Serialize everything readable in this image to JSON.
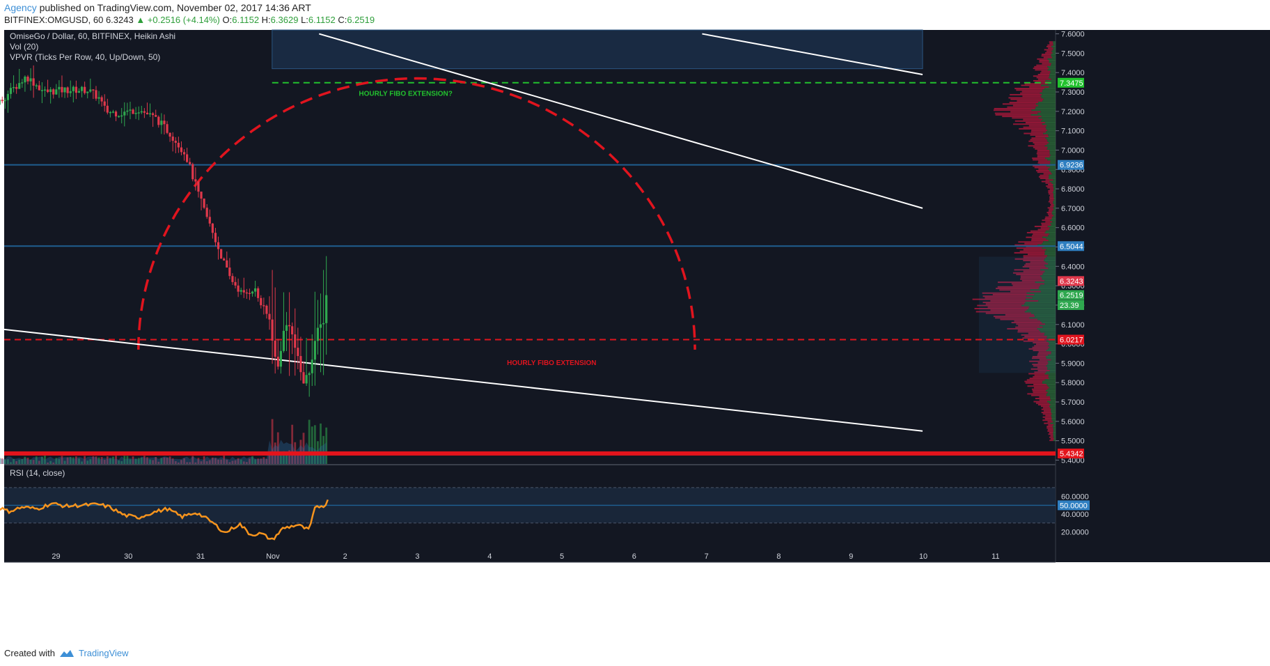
{
  "header": {
    "author": "Agency",
    "published_text": "published on TradingView.com, November 02, 2017 14:36 ART",
    "symbol": "BITFINEX:OMGUSD, 60",
    "last": "6.3243",
    "change": "+0.2516 (+4.14%)",
    "o_label": "O:",
    "o_value": "6.1152",
    "h_label": "H:",
    "h_value": "6.3629",
    "l_label": "L:",
    "l_value": "6.1152",
    "c_label": "C:",
    "c_value": "6.2519"
  },
  "footer": {
    "created_with": "Created with",
    "brand": "TradingView"
  },
  "colors": {
    "background": "#131722",
    "up": "#2fa84f",
    "down": "#e0384b",
    "fibo_green": "#22c22e",
    "fibo_red": "#e0141e",
    "hline_blue": "#1f5e8f",
    "rsi_line": "#f7941d",
    "volume_area": "#2b6ea3",
    "profile_red": "#a8173a",
    "profile_green": "#2d6e3a",
    "support_red": "#e3141c"
  },
  "chart_data": [
    {
      "type": "candlestick",
      "legend": [
        "OmiseGo / Dollar, 60, BITFINEX, Heikin Ashi",
        "Vol (20)",
        "VPVR (Ticks Per Row, 40, Up/Down, 50)"
      ],
      "x_ticks": [
        "29",
        "30",
        "31",
        "Nov",
        "2",
        "3",
        "4",
        "5",
        "6",
        "7",
        "8",
        "9",
        "10",
        "11"
      ],
      "ylim": [
        5.38,
        7.62
      ],
      "y_ticks": [
        "7.6000",
        "7.5000",
        "7.4000",
        "7.3000",
        "7.2000",
        "7.1000",
        "7.0000",
        "6.9000",
        "6.8000",
        "6.7000",
        "6.6000",
        "6.5000",
        "6.4000",
        "6.3000",
        "6.2000",
        "6.1000",
        "6.0000",
        "5.9000",
        "5.8000",
        "5.7000",
        "5.6000",
        "5.5000",
        "5.4000"
      ],
      "price_markers": [
        {
          "label": "7.3475",
          "value": 7.3475,
          "color": "#22c22e"
        },
        {
          "label": "6.9236",
          "value": 6.9236,
          "color": "#2f7fc1"
        },
        {
          "label": "6.5044",
          "value": 6.5044,
          "color": "#2f7fc1"
        },
        {
          "label": "6.3243",
          "value": 6.3243,
          "color": "#e0384b"
        },
        {
          "label": "6.2519",
          "value": 6.2519,
          "color": "#2fa84f"
        },
        {
          "label": "23.39",
          "value": 6.2,
          "color": "#2fa84f"
        },
        {
          "label": "6.0217",
          "value": 6.0217,
          "color": "#e0141e"
        },
        {
          "label": "5.4342",
          "value": 5.4342,
          "color": "#e3141c"
        }
      ],
      "annotations": [
        {
          "text": "HOURLY FIBO EXTENSION?",
          "color": "#22c22e"
        },
        {
          "text": "HOURLY FIBO EXTENSION",
          "color": "#e0141e"
        }
      ],
      "horizontal_levels": {
        "fibo_green": 7.3475,
        "blue_1": 6.9236,
        "blue_2": 6.5044,
        "fibo_red": 6.0217,
        "support": 5.4342
      },
      "trendlines": [
        {
          "name": "upper-channel-1",
          "from": [
            3.5,
            7.6
          ],
          "to": [
            11.85,
            6.7
          ]
        },
        {
          "name": "upper-channel-2",
          "from": [
            8.8,
            7.6
          ],
          "to": [
            11.85,
            7.39
          ]
        },
        {
          "name": "lower-channel",
          "from": [
            -2.2,
            6.13
          ],
          "to": [
            11.85,
            5.55
          ]
        }
      ],
      "fibo_arc": {
        "center": [
          4.85,
          5.97
        ],
        "x_radius": 3.85,
        "y_radius": 1.4
      },
      "highlight_zone": {
        "x": [
          2.85,
          11.85
        ],
        "y": [
          7.42,
          7.62
        ]
      },
      "price_keypoints": [
        [
          -2.3,
          7.4
        ],
        [
          -2.1,
          7.27
        ],
        [
          -1.75,
          7.29
        ],
        [
          -1.45,
          7.13
        ],
        [
          -1.15,
          7.28
        ],
        [
          -0.95,
          7.24
        ],
        [
          -0.55,
          7.38
        ],
        [
          -0.3,
          7.3
        ],
        [
          0.0,
          7.31
        ],
        [
          0.3,
          7.31
        ],
        [
          0.45,
          7.27
        ],
        [
          0.55,
          7.2
        ],
        [
          0.75,
          7.19
        ],
        [
          1.0,
          7.21
        ],
        [
          1.25,
          7.16
        ],
        [
          1.45,
          7.08
        ],
        [
          1.65,
          6.98
        ],
        [
          1.85,
          6.75
        ],
        [
          2.05,
          6.55
        ],
        [
          2.25,
          6.35
        ],
        [
          2.45,
          6.25
        ],
        [
          2.6,
          6.29
        ],
        [
          2.7,
          6.2
        ],
        [
          2.82,
          6.12
        ],
        [
          2.92,
          5.85
        ],
        [
          3.0,
          6.05
        ],
        [
          3.08,
          6.12
        ],
        [
          3.18,
          5.96
        ],
        [
          3.28,
          5.8
        ],
        [
          3.36,
          5.85
        ],
        [
          3.46,
          6.05
        ],
        [
          3.56,
          6.12
        ],
        [
          3.6,
          6.25
        ]
      ]
    },
    {
      "type": "line",
      "legend": "RSI (14, close)",
      "ylim": [
        0,
        95
      ],
      "y_ticks": [
        "60.0000",
        "40.0000",
        "20.0000"
      ],
      "level_marker": {
        "label": "50.0000",
        "value": 50
      },
      "bands": [
        30,
        70
      ],
      "keypoints": [
        [
          -2.3,
          38
        ],
        [
          -2.1,
          28
        ],
        [
          -1.9,
          34
        ],
        [
          -1.6,
          35
        ],
        [
          -1.4,
          27
        ],
        [
          -1.2,
          22
        ],
        [
          -1.0,
          50
        ],
        [
          -0.8,
          43
        ],
        [
          -0.6,
          48
        ],
        [
          -0.4,
          46
        ],
        [
          -0.2,
          52
        ],
        [
          0.0,
          49
        ],
        [
          0.2,
          50
        ],
        [
          0.45,
          51
        ],
        [
          0.6,
          48
        ],
        [
          0.8,
          39
        ],
        [
          1.0,
          36
        ],
        [
          1.2,
          42
        ],
        [
          1.4,
          46
        ],
        [
          1.6,
          37
        ],
        [
          1.8,
          42
        ],
        [
          2.0,
          32
        ],
        [
          2.2,
          19
        ],
        [
          2.4,
          29
        ],
        [
          2.55,
          17
        ],
        [
          2.7,
          18
        ],
        [
          2.85,
          11
        ],
        [
          3.0,
          24
        ],
        [
          3.2,
          28
        ],
        [
          3.36,
          22
        ],
        [
          3.45,
          48
        ],
        [
          3.58,
          50
        ],
        [
          3.62,
          55
        ]
      ]
    }
  ]
}
